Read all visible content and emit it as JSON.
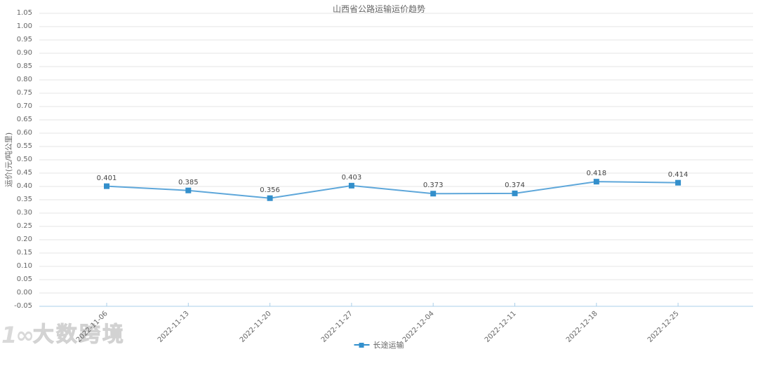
{
  "title": "山西省公路运输运价趋势",
  "legend": {
    "label": "长途运输"
  },
  "watermark": {
    "logo": "1∞",
    "text": "大数跨境"
  },
  "colors": {
    "line": "#5ea7da",
    "marker": "#338fcb",
    "grid": "#e4e4e4",
    "axis": "#abcfe9",
    "tick_text": "#666666",
    "data_label_text": "#444444"
  },
  "chart_data": {
    "type": "line",
    "title": "山西省公路运输运价趋势",
    "xlabel": "",
    "ylabel": "运价(元/吨公里)",
    "categories": [
      "2022-11-06",
      "2022-11-13",
      "2022-11-20",
      "2022-11-27",
      "2022-12-04",
      "2022-12-11",
      "2022-12-18",
      "2022-12-25"
    ],
    "series": [
      {
        "name": "长途运输",
        "values": [
          0.401,
          0.385,
          0.356,
          0.403,
          0.373,
          0.374,
          0.418,
          0.414
        ]
      }
    ],
    "ylim": [
      -0.05,
      1.05
    ],
    "ytick_step": 0.05,
    "grid": true,
    "legend_position": "bottom",
    "marker_shape": "square",
    "value_label_decimals": 3
  }
}
